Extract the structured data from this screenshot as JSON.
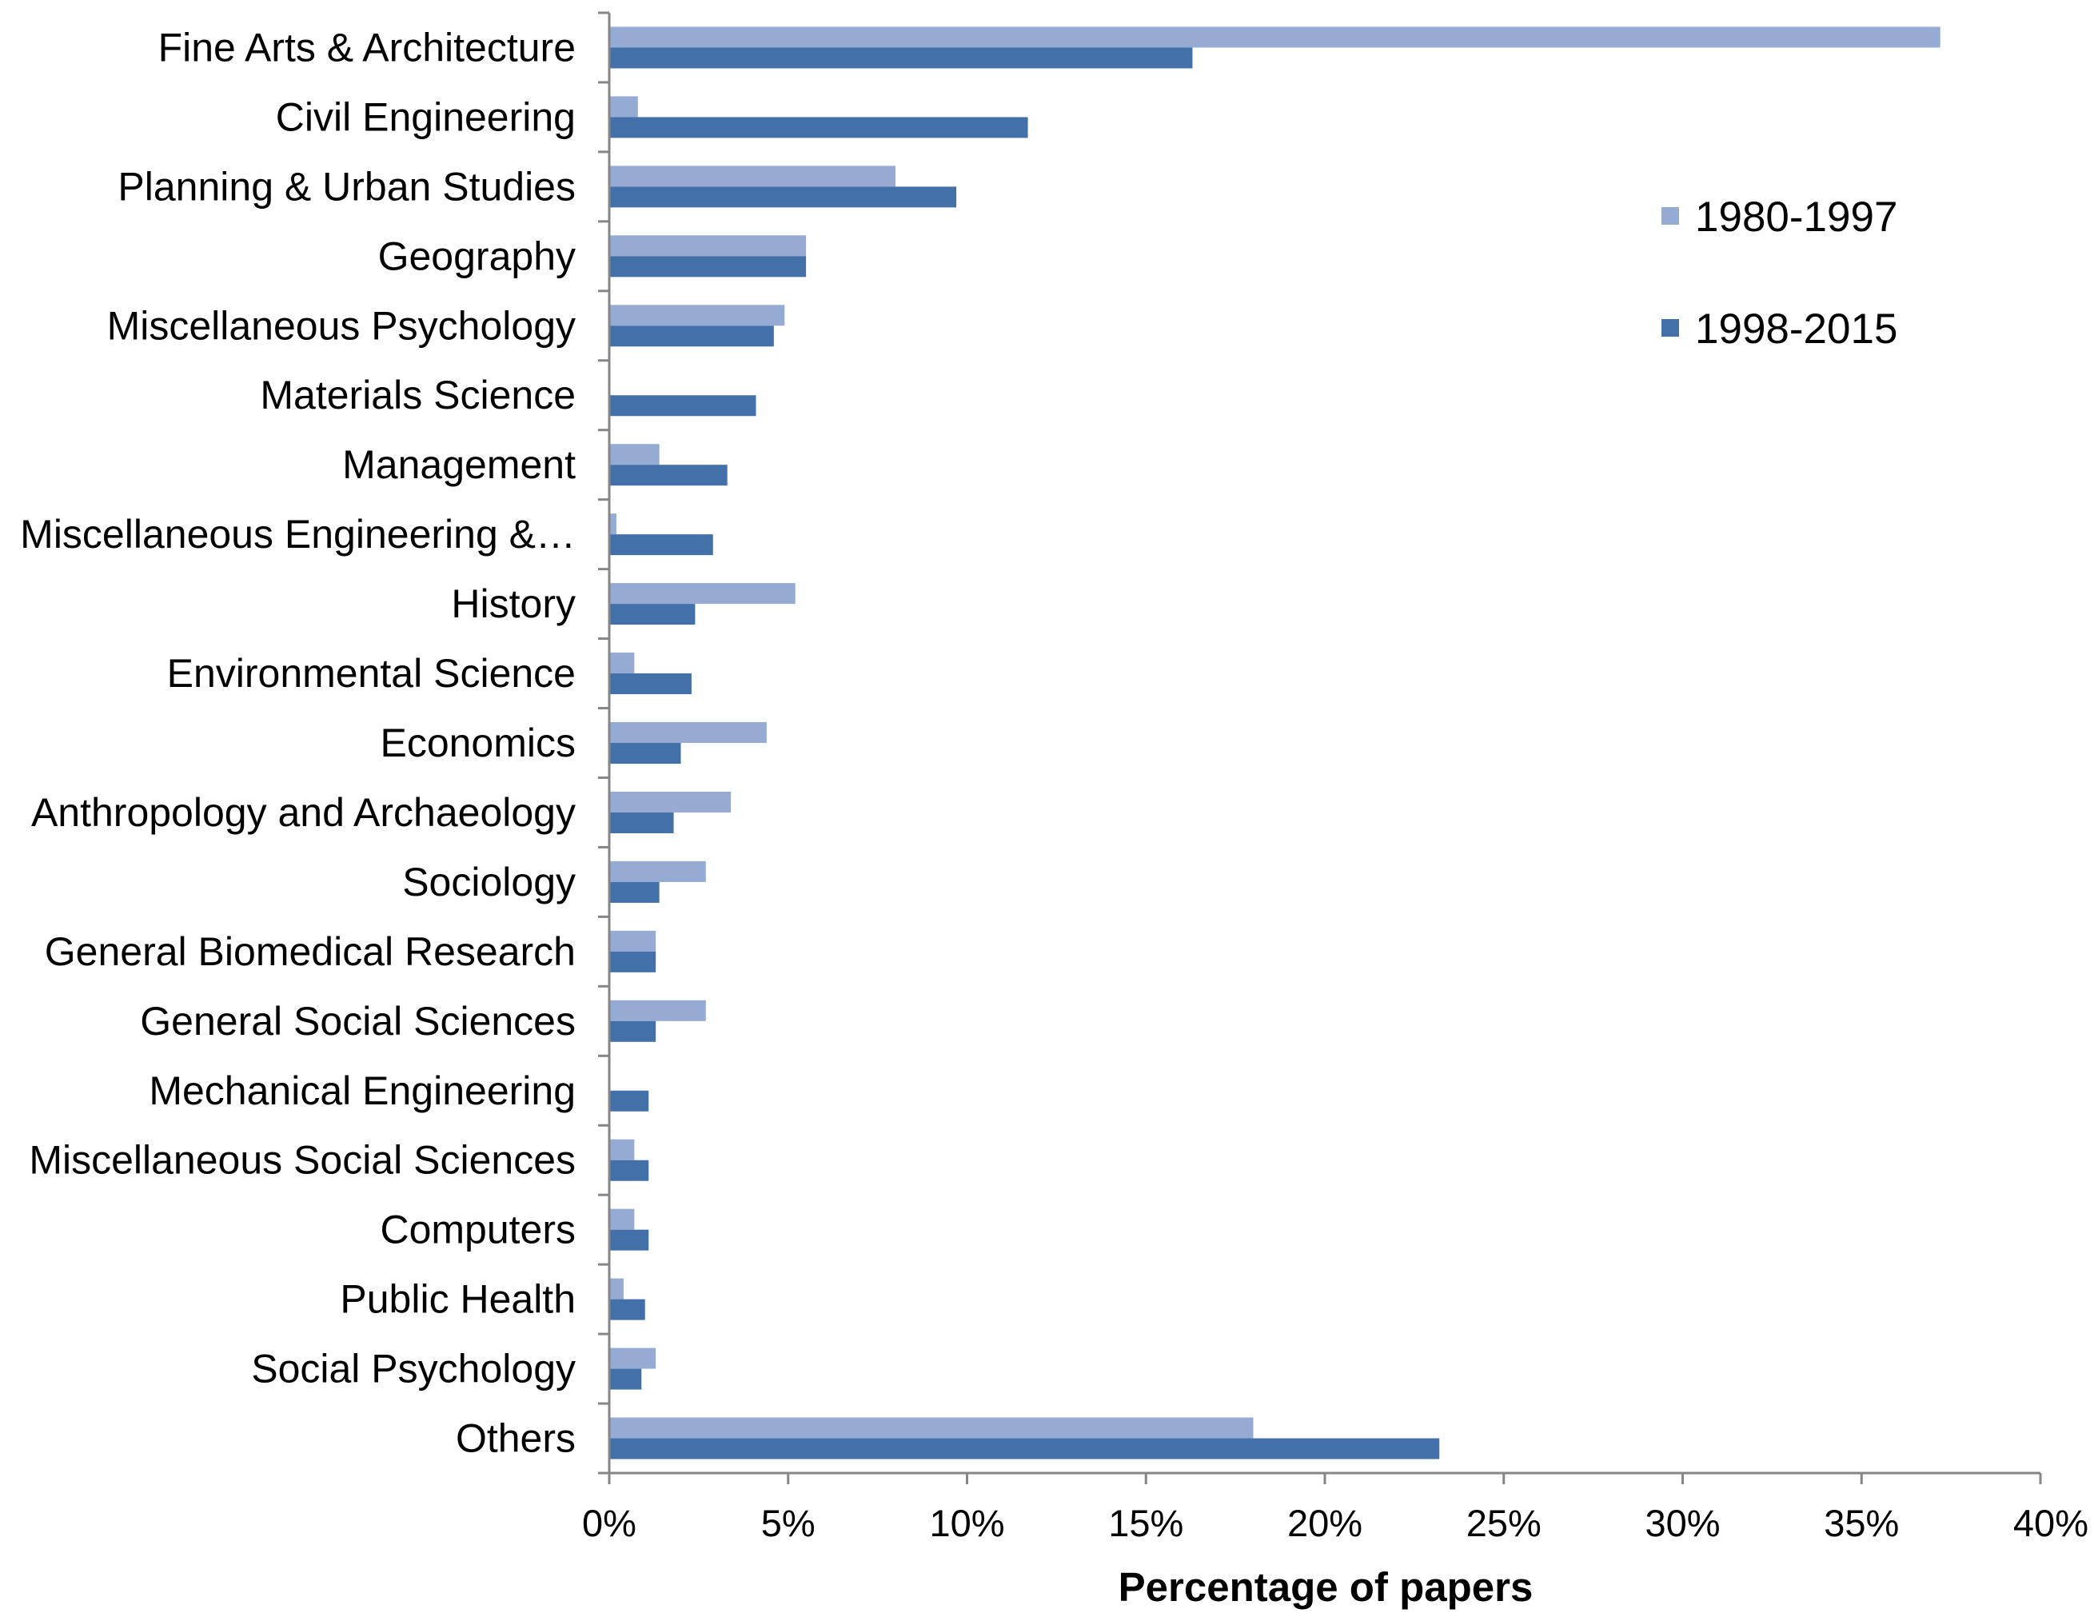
{
  "chart_data": {
    "type": "bar",
    "orientation": "horizontal",
    "categories": [
      "Fine Arts & Architecture",
      "Civil Engineering",
      "Planning & Urban Studies",
      "Geography",
      "Miscellaneous Psychology",
      "Materials Science",
      "Management",
      "Miscellaneous Engineering &…",
      "History",
      "Environmental Science",
      "Economics",
      "Anthropology and Archaeology",
      "Sociology",
      "General Biomedical Research",
      "General Social Sciences",
      "Mechanical Engineering",
      "Miscellaneous Social Sciences",
      "Computers",
      "Public Health",
      "Social Psychology",
      "Others"
    ],
    "series": [
      {
        "name": "1980-1997",
        "color": "#95abd3",
        "values": [
          37.2,
          0.8,
          8.0,
          5.5,
          4.9,
          0,
          1.4,
          0.2,
          5.2,
          0.7,
          4.4,
          3.4,
          2.7,
          1.3,
          2.7,
          0,
          0.7,
          0.7,
          0.4,
          1.3,
          18.0
        ]
      },
      {
        "name": "1998-2015",
        "color": "#4470a9",
        "values": [
          16.3,
          11.7,
          9.7,
          5.5,
          4.6,
          4.1,
          3.3,
          2.9,
          2.4,
          2.3,
          2.0,
          1.8,
          1.4,
          1.3,
          1.3,
          1.1,
          1.1,
          1.1,
          1.0,
          0.9,
          23.2
        ]
      }
    ],
    "xticks": [
      "0%",
      "5%",
      "10%",
      "15%",
      "20%",
      "25%",
      "30%",
      "35%",
      "40%"
    ],
    "xlim": [
      0,
      40
    ],
    "xlabel": "Percentage of papers",
    "ylabel": "",
    "title": "",
    "grid": false,
    "legend_position": "right"
  }
}
